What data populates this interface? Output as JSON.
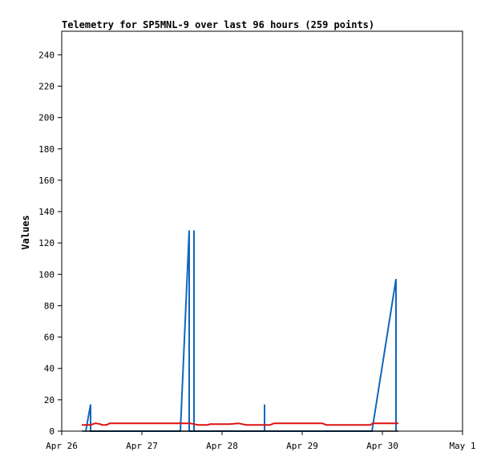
{
  "chart_data": {
    "type": "line",
    "title": "Telemetry for SP5MNL-9 over last 96 hours (259 points)",
    "ylabel": "Values",
    "xlabel": "",
    "ylim": [
      0,
      255
    ],
    "xlim": [
      0,
      5
    ],
    "yticks": [
      0,
      20,
      40,
      60,
      80,
      100,
      120,
      140,
      160,
      180,
      200,
      220,
      240
    ],
    "xticks": [
      {
        "v": 0,
        "label": "Apr 26"
      },
      {
        "v": 1,
        "label": "Apr 27"
      },
      {
        "v": 2,
        "label": "Apr 28"
      },
      {
        "v": 3,
        "label": "Apr 29"
      },
      {
        "v": 4,
        "label": "Apr 30"
      },
      {
        "v": 5,
        "label": "May 1"
      }
    ],
    "grid": false,
    "series": [
      {
        "color": "#1166bb",
        "points": [
          [
            0.3,
            0
          ],
          [
            0.36,
            17
          ],
          [
            0.36,
            0
          ],
          [
            1.48,
            0
          ],
          [
            1.59,
            128
          ],
          [
            1.59,
            0
          ],
          [
            1.65,
            0
          ],
          [
            1.65,
            128
          ],
          [
            1.65,
            0
          ],
          [
            2.53,
            0
          ],
          [
            2.53,
            17
          ],
          [
            2.53,
            0
          ],
          [
            3.87,
            0
          ],
          [
            4.17,
            97
          ],
          [
            4.17,
            0
          ]
        ]
      },
      {
        "color": "#dd1111",
        "points": [
          [
            0.25,
            4
          ],
          [
            0.36,
            4
          ],
          [
            0.42,
            5
          ],
          [
            0.48,
            4.5
          ],
          [
            0.5,
            4
          ],
          [
            0.56,
            4
          ],
          [
            0.6,
            5
          ],
          [
            1.6,
            5
          ],
          [
            1.7,
            4
          ],
          [
            1.82,
            4
          ],
          [
            1.85,
            4.5
          ],
          [
            2.1,
            4.5
          ],
          [
            2.2,
            5
          ],
          [
            2.25,
            4.5
          ],
          [
            2.3,
            4
          ],
          [
            2.6,
            4
          ],
          [
            2.65,
            5
          ],
          [
            3.25,
            5
          ],
          [
            3.3,
            4
          ],
          [
            3.85,
            4
          ],
          [
            3.88,
            5
          ],
          [
            4.2,
            5
          ]
        ]
      },
      {
        "color": "#000000",
        "points": [
          [
            0.25,
            0
          ],
          [
            4.2,
            0
          ]
        ]
      }
    ]
  }
}
